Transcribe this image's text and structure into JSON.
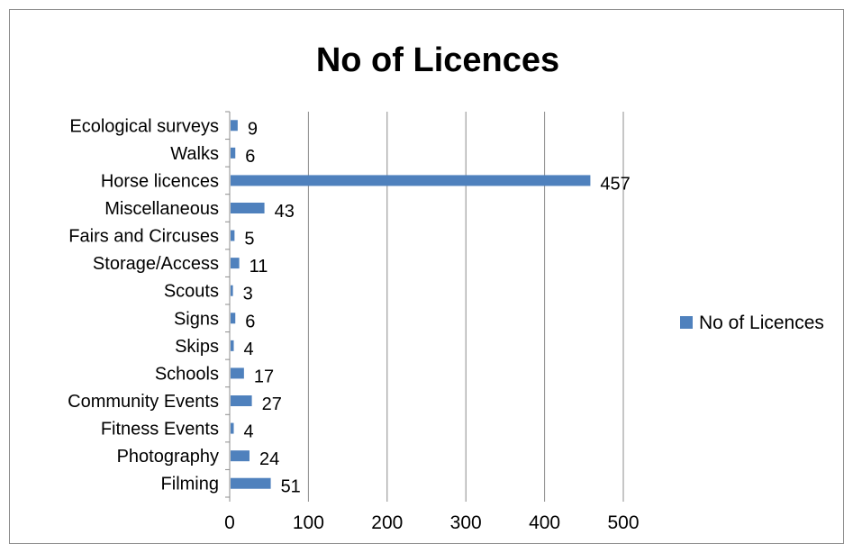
{
  "chart_data": {
    "type": "bar",
    "orientation": "horizontal",
    "title": "No of Licences",
    "categories": [
      "Filming",
      "Photography",
      "Fitness Events",
      "Community Events",
      "Schools",
      "Skips",
      "Signs",
      "Scouts",
      "Storage/Access",
      "Fairs and Circuses",
      "Miscellaneous",
      "Horse licences",
      "Walks",
      "Ecological surveys"
    ],
    "series": [
      {
        "name": "No of Licences",
        "values": [
          51,
          24,
          4,
          27,
          17,
          4,
          6,
          3,
          11,
          5,
          43,
          457,
          6,
          9
        ]
      }
    ],
    "value_axis": {
      "min": 0,
      "max": 500,
      "ticks": [
        "0",
        "100",
        "200",
        "300",
        "400",
        "500"
      ]
    },
    "grid": true,
    "data_labels": true,
    "legend_position": "right",
    "colors": {
      "bar": "#4f81bd",
      "grid": "#8c8c8c",
      "axis": "#8c8c8c",
      "border": "#8c8c8c"
    }
  }
}
